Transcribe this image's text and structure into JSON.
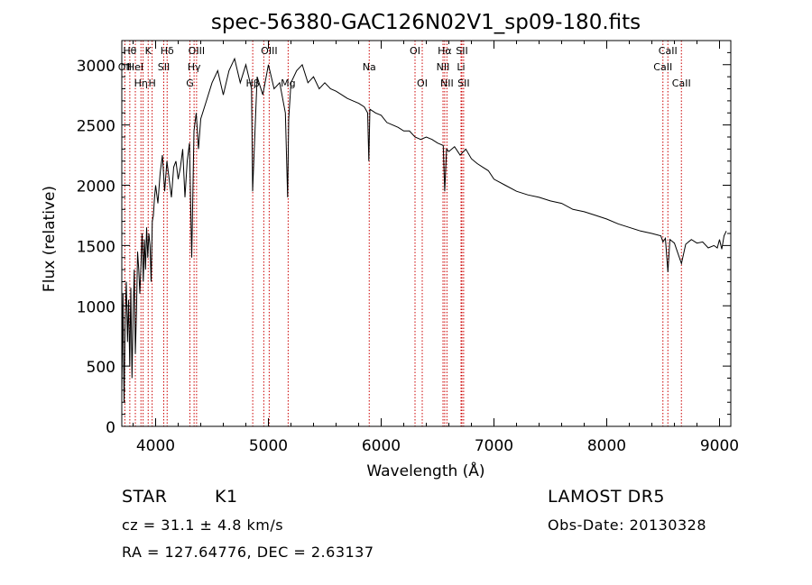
{
  "chart_data": {
    "type": "line",
    "title": "spec-56380-GAC126N02V1_sp09-180.fits",
    "xlabel": "Wavelength (Å)",
    "ylabel": "Flux (relative)",
    "xlim": [
      3700,
      9100
    ],
    "ylim": [
      0,
      3200
    ],
    "xticks": [
      4000,
      5000,
      6000,
      7000,
      8000,
      9000
    ],
    "yticks": [
      0,
      500,
      1000,
      1500,
      2000,
      2500,
      3000
    ],
    "grid": false,
    "series": [
      {
        "x": [
          3700,
          3710,
          3720,
          3730,
          3740,
          3750,
          3760,
          3770,
          3780,
          3790,
          3800,
          3810,
          3820,
          3830,
          3840,
          3850,
          3860,
          3870,
          3880,
          3890,
          3900,
          3910,
          3920,
          3930,
          3940,
          3950,
          3960,
          3970,
          3980,
          3990,
          4000,
          4020,
          4040,
          4060,
          4080,
          4100,
          4120,
          4140,
          4160,
          4180,
          4200,
          4220,
          4240,
          4260,
          4280,
          4300,
          4320,
          4340,
          4360,
          4380,
          4400,
          4450,
          4500,
          4550,
          4600,
          4650,
          4700,
          4750,
          4800,
          4850,
          4860,
          4900,
          4950,
          5000,
          5050,
          5100,
          5150,
          5170,
          5180,
          5200,
          5250,
          5300,
          5350,
          5400,
          5450,
          5500,
          5550,
          5600,
          5650,
          5700,
          5750,
          5800,
          5850,
          5880,
          5890,
          5900,
          5950,
          6000,
          6050,
          6100,
          6150,
          6200,
          6250,
          6300,
          6350,
          6400,
          6450,
          6500,
          6550,
          6563,
          6580,
          6600,
          6650,
          6700,
          6750,
          6800,
          6850,
          6900,
          6950,
          7000,
          7100,
          7200,
          7300,
          7400,
          7500,
          7600,
          7700,
          7800,
          7900,
          8000,
          8100,
          8200,
          8300,
          8400,
          8480,
          8498,
          8520,
          8542,
          8560,
          8600,
          8662,
          8700,
          8750,
          8800,
          8850,
          8900,
          8950,
          8980,
          9000,
          9020,
          9040,
          9050,
          9060
        ],
        "y": [
          300,
          1100,
          200,
          900,
          1200,
          700,
          1050,
          500,
          1150,
          400,
          900,
          1300,
          600,
          950,
          1450,
          1300,
          1100,
          1350,
          1600,
          1200,
          1550,
          1300,
          1650,
          1400,
          1600,
          1500,
          1200,
          1700,
          1750,
          1900,
          2000,
          1850,
          2100,
          2250,
          1950,
          2200,
          2050,
          1900,
          2150,
          2200,
          2050,
          2150,
          2300,
          1900,
          2200,
          2350,
          1400,
          2450,
          2600,
          2300,
          2550,
          2700,
          2850,
          2950,
          2750,
          2950,
          3050,
          2850,
          3000,
          2800,
          1950,
          2900,
          2750,
          3000,
          2800,
          2850,
          2600,
          1900,
          2550,
          2850,
          2950,
          3000,
          2850,
          2900,
          2800,
          2850,
          2800,
          2780,
          2750,
          2720,
          2700,
          2680,
          2650,
          2600,
          2200,
          2630,
          2600,
          2580,
          2520,
          2500,
          2480,
          2450,
          2450,
          2400,
          2380,
          2400,
          2380,
          2350,
          2330,
          1950,
          2300,
          2280,
          2320,
          2250,
          2300,
          2220,
          2180,
          2150,
          2120,
          2050,
          2000,
          1950,
          1920,
          1900,
          1870,
          1850,
          1800,
          1780,
          1750,
          1720,
          1680,
          1650,
          1620,
          1600,
          1580,
          1530,
          1560,
          1280,
          1550,
          1520,
          1350,
          1510,
          1550,
          1520,
          1530,
          1480,
          1500,
          1480,
          1550,
          1470,
          1580,
          1600,
          1620
        ]
      }
    ],
    "lines": [
      {
        "x": 3727,
        "label": "OII",
        "row": 1
      },
      {
        "x": 3771,
        "label": "Hθ",
        "row": 0
      },
      {
        "x": 3820,
        "label": "HeI",
        "row": 1
      },
      {
        "x": 3870,
        "label": "Hη",
        "row": 2
      },
      {
        "x": 3889,
        "label": "",
        "row": 2
      },
      {
        "x": 3934,
        "label": "K",
        "row": 0
      },
      {
        "x": 3969,
        "label": "H",
        "row": 2
      },
      {
        "x": 4072,
        "label": "SII",
        "row": 1
      },
      {
        "x": 4102,
        "label": "Hδ",
        "row": 0
      },
      {
        "x": 4304,
        "label": "G",
        "row": 2
      },
      {
        "x": 4341,
        "label": "Hγ",
        "row": 1
      },
      {
        "x": 4363,
        "label": "OIII",
        "row": 0
      },
      {
        "x": 4861,
        "label": "Hβ",
        "row": 2
      },
      {
        "x": 4959,
        "label": "",
        "row": 2
      },
      {
        "x": 5007,
        "label": "OIII",
        "row": 0
      },
      {
        "x": 5175,
        "label": "Mg",
        "row": 2
      },
      {
        "x": 5894,
        "label": "Na",
        "row": 1
      },
      {
        "x": 6300,
        "label": "OI",
        "row": 0
      },
      {
        "x": 6364,
        "label": "OI",
        "row": 2
      },
      {
        "x": 6548,
        "label": "NII",
        "row": 1
      },
      {
        "x": 6563,
        "label": "Hα",
        "row": 0
      },
      {
        "x": 6583,
        "label": "NII",
        "row": 2
      },
      {
        "x": 6708,
        "label": "Li",
        "row": 1
      },
      {
        "x": 6716,
        "label": "SII",
        "row": 0
      },
      {
        "x": 6731,
        "label": "SII",
        "row": 2
      },
      {
        "x": 8498,
        "label": "CaII",
        "row": 1
      },
      {
        "x": 8542,
        "label": "CaII",
        "row": 0
      },
      {
        "x": 8662,
        "label": "CaII",
        "row": 2
      }
    ]
  },
  "info": {
    "class_label": "STAR",
    "subclass_label": "K1",
    "velocity": "cz = 31.1 ± 4.8 km/s",
    "coords": "RA = 127.64776, DEC =   2.63137",
    "survey": "LAMOST  DR5",
    "obs_date": "Obs-Date: 20130328"
  },
  "colors": {
    "line_marker": "#cc0000",
    "spectrum": "#000000",
    "axes": "#000000"
  }
}
